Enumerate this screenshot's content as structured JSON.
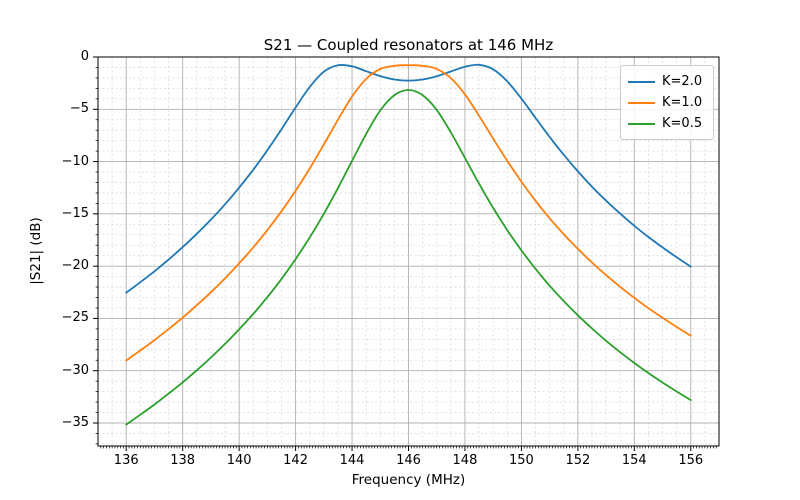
{
  "chart_data": {
    "type": "line",
    "title": "S21 — Coupled resonators at 146 MHz",
    "xlabel": "Frequency (MHz)",
    "ylabel": "|S21| (dB)",
    "xlim": [
      135,
      157
    ],
    "ylim": [
      -37.2,
      0
    ],
    "xticks": [
      136,
      138,
      140,
      142,
      144,
      146,
      148,
      150,
      152,
      154,
      156
    ],
    "yticks": [
      0,
      -5,
      -10,
      -15,
      -20,
      -25,
      -30,
      -35
    ],
    "x_minor_grid_step": 0.5,
    "x_minor_tick_step": 0.1,
    "y_minor_step": 1,
    "grid": "both",
    "legend_position": "upper right",
    "colors": {
      "blue": "#1f77b4",
      "orange": "#ff7f0e",
      "green": "#2ca02c",
      "major_grid": "#b0b0b0",
      "minor_grid": "#d9d9d9",
      "spine": "#000000"
    },
    "x": [
      136,
      136.5,
      137,
      137.5,
      138,
      138.5,
      139,
      139.5,
      140,
      140.5,
      141,
      141.5,
      142,
      142.5,
      143,
      143.5,
      144,
      144.5,
      145,
      145.5,
      146,
      146.5,
      147,
      147.5,
      148,
      148.5,
      149,
      149.5,
      150,
      150.5,
      151,
      151.5,
      152,
      152.5,
      153,
      153.5,
      154,
      154.5,
      155,
      155.5,
      156
    ],
    "series": [
      {
        "name": "K=2.0",
        "color": "#1f77b4",
        "values": [
          -22.54,
          -21.54,
          -20.49,
          -19.37,
          -18.18,
          -16.91,
          -15.55,
          -14.09,
          -12.5,
          -10.78,
          -8.91,
          -6.91,
          -4.83,
          -2.87,
          -1.41,
          -0.78,
          -0.89,
          -1.36,
          -1.83,
          -2.15,
          -2.26,
          -2.15,
          -1.84,
          -1.39,
          -0.93,
          -0.75,
          -1.18,
          -2.33,
          -3.98,
          -5.82,
          -7.64,
          -9.35,
          -10.94,
          -12.4,
          -13.74,
          -14.98,
          -16.14,
          -17.21,
          -18.21,
          -19.15,
          -20.04
        ]
      },
      {
        "name": "K=1.0",
        "color": "#ff7f0e",
        "values": [
          -29.02,
          -28.07,
          -27.07,
          -26.02,
          -24.92,
          -23.74,
          -22.5,
          -21.17,
          -19.74,
          -18.21,
          -16.55,
          -14.75,
          -12.79,
          -10.66,
          -8.37,
          -6.01,
          -3.79,
          -2.09,
          -1.15,
          -0.84,
          -0.78,
          -0.84,
          -1.14,
          -2.01,
          -3.58,
          -5.62,
          -7.81,
          -9.94,
          -11.92,
          -13.75,
          -15.42,
          -16.95,
          -18.35,
          -19.65,
          -20.86,
          -21.98,
          -23.03,
          -24.02,
          -24.94,
          -25.82,
          -26.65
        ]
      },
      {
        "name": "K=0.5",
        "color": "#2ca02c",
        "values": [
          -35.15,
          -34.21,
          -33.23,
          -32.19,
          -31.11,
          -29.96,
          -28.74,
          -27.44,
          -26.05,
          -24.57,
          -22.96,
          -21.22,
          -19.33,
          -17.26,
          -15.0,
          -12.55,
          -9.94,
          -7.35,
          -5.11,
          -3.64,
          -3.16,
          -3.64,
          -5.06,
          -7.2,
          -9.66,
          -12.12,
          -14.44,
          -16.56,
          -18.49,
          -20.25,
          -21.87,
          -23.34,
          -24.7,
          -25.96,
          -27.14,
          -28.23,
          -29.26,
          -30.22,
          -31.13,
          -31.99,
          -32.81
        ]
      }
    ]
  }
}
